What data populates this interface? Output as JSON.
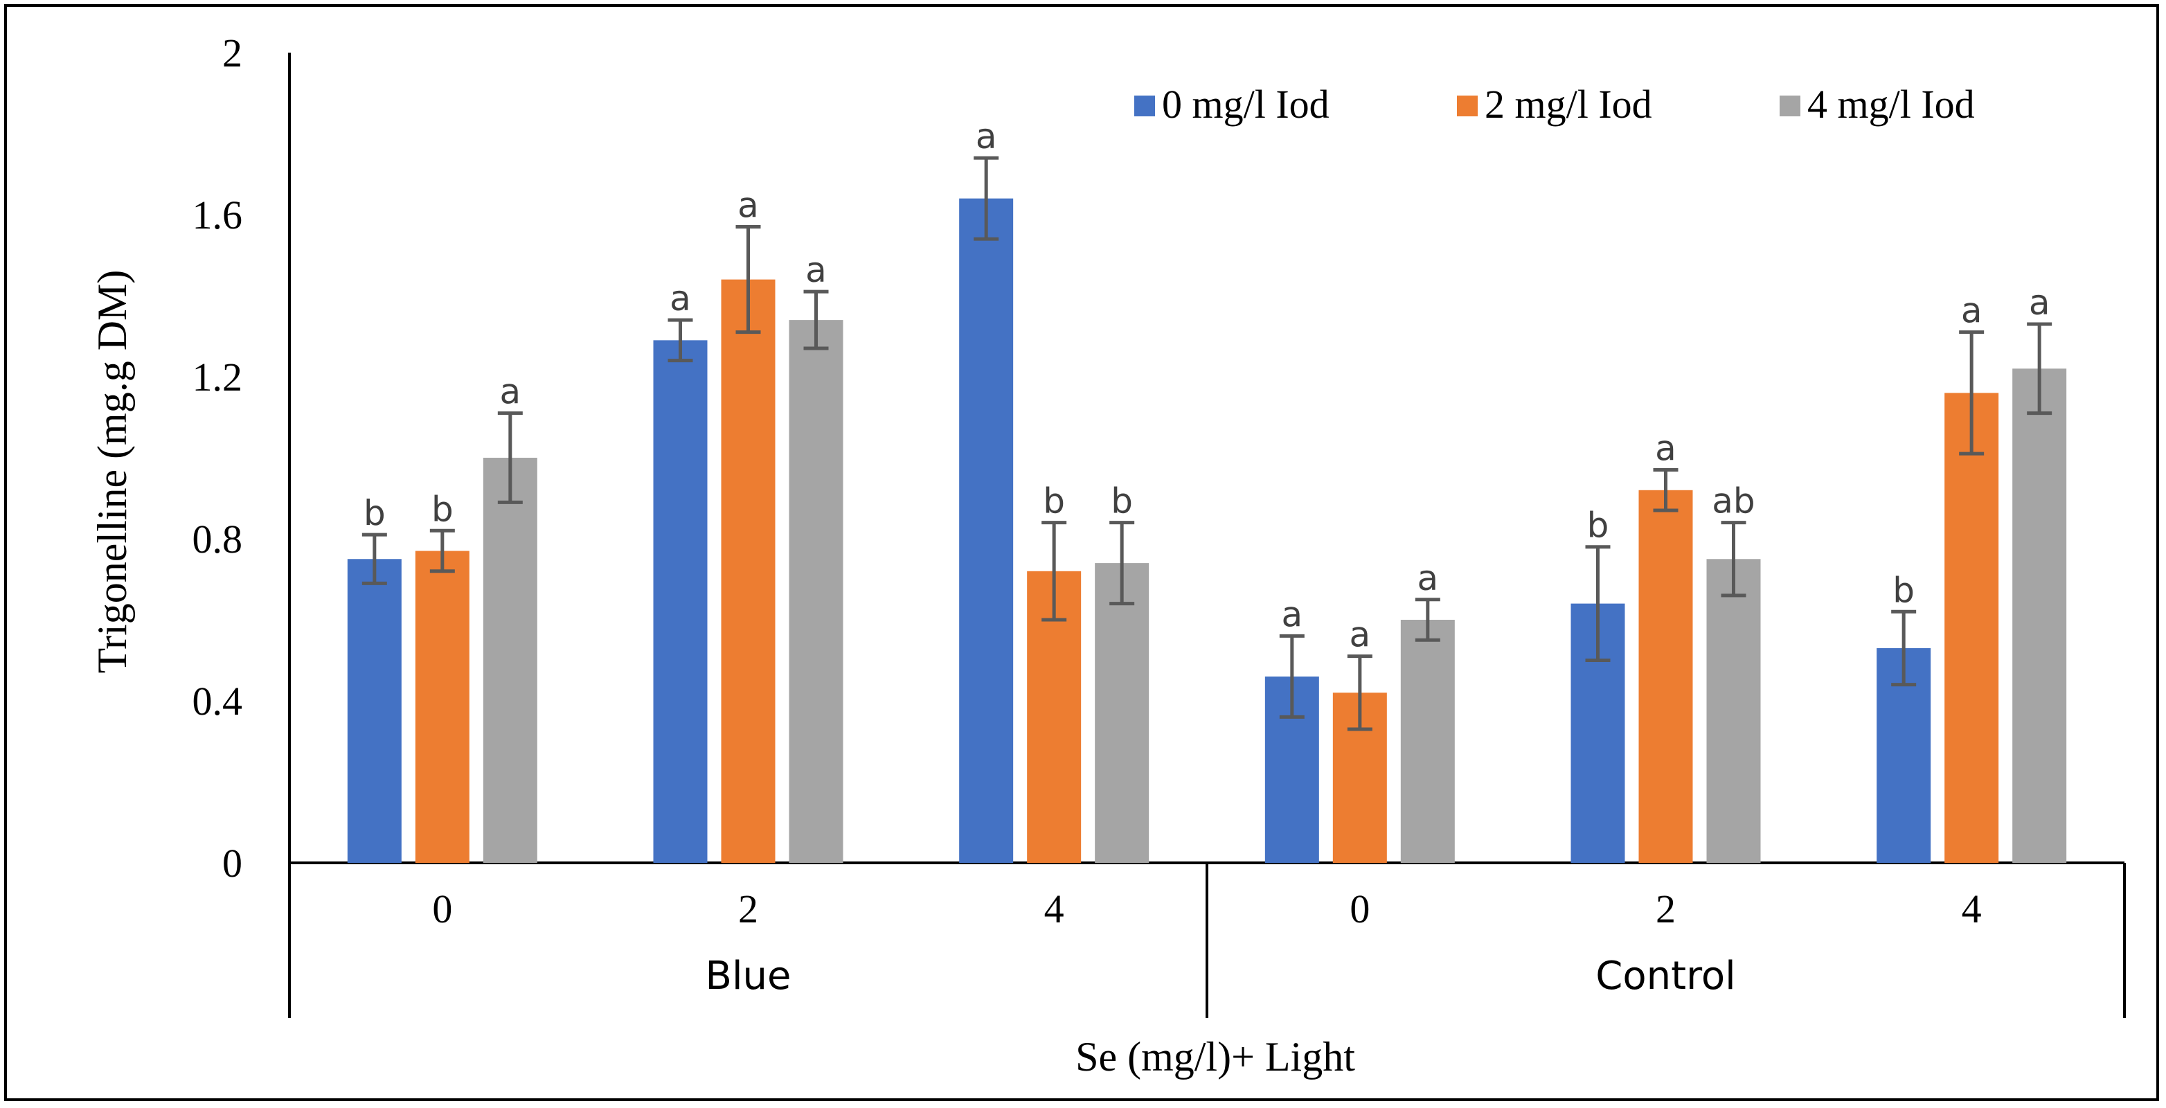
{
  "chart_data": {
    "type": "bar",
    "title": "",
    "ylabel": "Trigonelline (mg.g DM)",
    "xlabel": "Se (mg/l)+ Light",
    "ylim": [
      0,
      2
    ],
    "yticks": [
      "0",
      "0.4",
      "0.8",
      "1.2",
      "1.6",
      "2"
    ],
    "ytick_values": [
      0,
      0.4,
      0.8,
      1.2,
      1.6,
      2
    ],
    "groups": [
      {
        "name": "Blue",
        "categories": [
          "0",
          "2",
          "4"
        ]
      },
      {
        "name": "Control",
        "categories": [
          "0",
          "2",
          "4"
        ]
      }
    ],
    "legend_position": "top-right",
    "series": [
      {
        "name": "0 mg/l Iod",
        "color": "#4472c4",
        "values": [
          0.75,
          1.29,
          1.64,
          0.46,
          0.64,
          0.53
        ],
        "errors": [
          0.06,
          0.05,
          0.1,
          0.1,
          0.14,
          0.09
        ],
        "letters": [
          "b",
          "a",
          "a",
          "a",
          "b",
          "b"
        ]
      },
      {
        "name": "2 mg/l Iod",
        "color": "#ed7d31",
        "values": [
          0.77,
          1.44,
          0.72,
          0.42,
          0.92,
          1.16
        ],
        "errors": [
          0.05,
          0.13,
          0.12,
          0.09,
          0.05,
          0.15
        ],
        "letters": [
          "b",
          "a",
          "b",
          "a",
          "a",
          "a"
        ]
      },
      {
        "name": "4 mg/l Iod",
        "color": "#a5a5a5",
        "values": [
          1.0,
          1.34,
          0.74,
          0.6,
          0.75,
          1.22
        ],
        "errors": [
          0.11,
          0.07,
          0.1,
          0.05,
          0.09,
          0.11
        ],
        "letters": [
          "a",
          "a",
          "b",
          "a",
          "ab",
          "a"
        ]
      }
    ]
  }
}
